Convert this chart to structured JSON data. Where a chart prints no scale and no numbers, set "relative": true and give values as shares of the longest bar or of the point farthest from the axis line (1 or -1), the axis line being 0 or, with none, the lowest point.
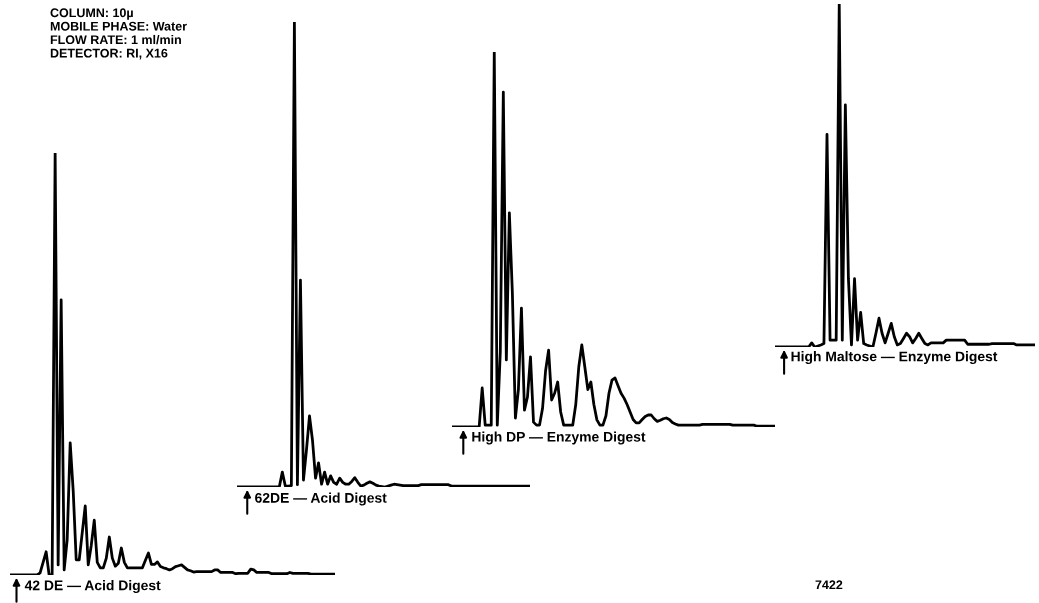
{
  "chart_data": [
    {
      "type": "line",
      "relative": true,
      "tick_labels": false,
      "xlabel": "42 DE — Acid Digest",
      "annotations": [
        "COLUMN: 10µ\nMOBILE PHASE: Water\nFLOW RATE: 1 ml/min\nDETECTOR: RI, X16"
      ],
      "categories": [
        null,
        null,
        null,
        null,
        null,
        null,
        null,
        null,
        null,
        null,
        null,
        null,
        null,
        null,
        null,
        null,
        null,
        null,
        null,
        null,
        null,
        null,
        null,
        null,
        null,
        null,
        null,
        null,
        null,
        null,
        null,
        null,
        null,
        null,
        null,
        null,
        null,
        null,
        null,
        null,
        null,
        null,
        null,
        null,
        null,
        null,
        null,
        null,
        null,
        null,
        null,
        null,
        null,
        null,
        null,
        null,
        null,
        null,
        null,
        null,
        null,
        null,
        null,
        null,
        null,
        null,
        null,
        null,
        null,
        null,
        null,
        null,
        null,
        null,
        null,
        null,
        null,
        null,
        null,
        null,
        null,
        null,
        null,
        null,
        null,
        null,
        null,
        null,
        null,
        null,
        null,
        null,
        null,
        null,
        null,
        null,
        null,
        null,
        null,
        null,
        null,
        null,
        null,
        null,
        null,
        null,
        null,
        null,
        null
      ],
      "series": [
        {
          "color": "#000000",
          "values": [
            0,
            0,
            0,
            0,
            0,
            0,
            0,
            0,
            0,
            0,
            0.005,
            0.03,
            0.055,
            0,
            0,
            1,
            0.024,
            0.652,
            0.012,
            0.083,
            0.313,
            0.2,
            0.036,
            0.036,
            0.1,
            0.164,
            0.024,
            0.07,
            0.13,
            0.03,
            0.017,
            0.017,
            0.04,
            0.09,
            0.04,
            0.021,
            0.028,
            0.064,
            0.03,
            0.017,
            0.017,
            0.017,
            0.017,
            0.017,
            0.017,
            0.035,
            0.052,
            0.025,
            0.025,
            0.031,
            0.02,
            0.017,
            0.015,
            0.012,
            0.015,
            0.02,
            0.022,
            0.024,
            0.018,
            0.012,
            0.01,
            0.007,
            0.008,
            0.008,
            0.008,
            0.008,
            0.008,
            0.008,
            0.012,
            0.012,
            0.006,
            0.006,
            0.006,
            0.006,
            0.006,
            0.003,
            0.004,
            0.004,
            0.004,
            0.004,
            0.014,
            0.012,
            0.006,
            0.006,
            0.006,
            0.006,
            0.006,
            0.003,
            0.003,
            0.003,
            0.003,
            0.003,
            0.003,
            0.006,
            0.004,
            0.004,
            0.004,
            0.004,
            0.004,
            0.004,
            0.002,
            0.002,
            0.002,
            0.002,
            0.002,
            0.002,
            0.002,
            0.002,
            0.002
          ]
        }
      ]
    },
    {
      "type": "line",
      "relative": true,
      "tick_labels": false,
      "xlabel": "62DE — Acid Digest",
      "categories": [
        null,
        null,
        null,
        null,
        null,
        null,
        null,
        null,
        null,
        null,
        null,
        null,
        null,
        null,
        null,
        null,
        null,
        null,
        null,
        null,
        null,
        null,
        null,
        null,
        null,
        null,
        null,
        null,
        null,
        null,
        null,
        null,
        null,
        null,
        null,
        null,
        null,
        null,
        null,
        null,
        null,
        null,
        null,
        null,
        null,
        null,
        null,
        null,
        null,
        null,
        null,
        null,
        null,
        null,
        null,
        null,
        null,
        null,
        null,
        null,
        null,
        null,
        null,
        null,
        null,
        null,
        null,
        null,
        null,
        null,
        null,
        null,
        null,
        null,
        null,
        null,
        null,
        null,
        null,
        null,
        null,
        null,
        null,
        null,
        null,
        null,
        null,
        null,
        null,
        null,
        null,
        null,
        null,
        null,
        null,
        null,
        null,
        null
      ],
      "series": [
        {
          "color": "#000000",
          "values": [
            0,
            0,
            0,
            0,
            0,
            0,
            0,
            0,
            0,
            0,
            0,
            0,
            0,
            0,
            0,
            0.032,
            0.002,
            0.002,
            0.003,
            1,
            0.005,
            0.445,
            0.015,
            0.08,
            0.153,
            0.1,
            0.019,
            0.052,
            0.006,
            0.032,
            0.006,
            0.024,
            0.01,
            0.006,
            0.019,
            0.01,
            0.006,
            0.006,
            0.012,
            0.02,
            0.01,
            0.002,
            0.004,
            0.008,
            0.011,
            0.008,
            0.004,
            0.002,
            0.001,
            0,
            0.002,
            0.004,
            0.006,
            0.005,
            0.004,
            0.003,
            0.003,
            0.003,
            0.003,
            0.003,
            0.003,
            0.005,
            0.005,
            0.005,
            0.005,
            0.005,
            0.005,
            0.005,
            0.005,
            0.005,
            0.005,
            0.002,
            0.002,
            0.002,
            0.002,
            0.002,
            0.002,
            0.002,
            0.002,
            0.002,
            0.002,
            0.002,
            0.002,
            0.002,
            0.002,
            0.002,
            0.002,
            0.002,
            0.002,
            0.002,
            0.002,
            0.002,
            0.002,
            0.002,
            0.002,
            0.002,
            0.002,
            0.002
          ]
        }
      ]
    },
    {
      "type": "line",
      "relative": true,
      "tick_labels": false,
      "xlabel": "High DP — Enzyme Digest",
      "categories": [
        null,
        null,
        null,
        null,
        null,
        null,
        null,
        null,
        null,
        null,
        null,
        null,
        null,
        null,
        null,
        null,
        null,
        null,
        null,
        null,
        null,
        null,
        null,
        null,
        null,
        null,
        null,
        null,
        null,
        null,
        null,
        null,
        null,
        null,
        null,
        null,
        null,
        null,
        null,
        null,
        null,
        null,
        null,
        null,
        null,
        null,
        null,
        null,
        null,
        null,
        null,
        null,
        null,
        null,
        null,
        null,
        null,
        null,
        null,
        null,
        null,
        null,
        null,
        null,
        null,
        null,
        null,
        null,
        null,
        null,
        null,
        null,
        null,
        null,
        null,
        null,
        null,
        null,
        null,
        null,
        null,
        null,
        null,
        null,
        null,
        null,
        null,
        null,
        null,
        null,
        null,
        null,
        null,
        null,
        null,
        null,
        null,
        null,
        null,
        null,
        null,
        null,
        null,
        null,
        null,
        null,
        null,
        null
      ],
      "series": [
        {
          "color": "#000000",
          "values": [
            0,
            0,
            0,
            0,
            0,
            0,
            0,
            0,
            0,
            0,
            0.104,
            0.005,
            0.005,
            0.005,
            1,
            0.005,
            0.2,
            0.893,
            0.179,
            0.571,
            0.357,
            0.024,
            0.1,
            0.317,
            0.045,
            0.08,
            0.187,
            0.013,
            0.005,
            0.005,
            0.05,
            0.15,
            0.205,
            0.072,
            0.09,
            0.12,
            0.04,
            0.005,
            0.005,
            0.005,
            0.005,
            0.06,
            0.16,
            0.219,
            0.16,
            0.1,
            0.12,
            0.06,
            0.019,
            0.005,
            0.005,
            0.03,
            0.09,
            0.125,
            0.131,
            0.11,
            0.09,
            0.077,
            0.06,
            0.04,
            0.02,
            0.011,
            0.011,
            0.02,
            0.028,
            0.032,
            0.032,
            0.022,
            0.015,
            0.018,
            0.022,
            0.024,
            0.02,
            0.012,
            0.008,
            0.005,
            0.005,
            0.005,
            0.005,
            0.005,
            0.005,
            0.005,
            0.005,
            0.007,
            0.007,
            0.007,
            0.007,
            0.007,
            0.007,
            0.007,
            0.007,
            0.007,
            0.007,
            0.005,
            0.005,
            0.005,
            0.005,
            0.005,
            0.005,
            0.005,
            0.005,
            0.002,
            0.002,
            0.002,
            0.002,
            0.002,
            0.002,
            0.002
          ]
        }
      ]
    },
    {
      "type": "line",
      "relative": true,
      "tick_labels": false,
      "xlabel": "High Maltose — Enzyme Digest",
      "annotations": [
        "7422"
      ],
      "categories": [
        null,
        null,
        null,
        null,
        null,
        null,
        null,
        null,
        null,
        null,
        null,
        null,
        null,
        null,
        null,
        null,
        null,
        null,
        null,
        null,
        null,
        null,
        null,
        null,
        null,
        null,
        null,
        null,
        null,
        null,
        null,
        null,
        null,
        null,
        null,
        null,
        null,
        null,
        null,
        null,
        null,
        null,
        null,
        null,
        null,
        null,
        null,
        null,
        null,
        null,
        null,
        null,
        null,
        null,
        null,
        null,
        null,
        null,
        null,
        null,
        null,
        null,
        null,
        null,
        null,
        null,
        null,
        null,
        null,
        null,
        null,
        null,
        null,
        null,
        null,
        null,
        null,
        null,
        null,
        null,
        null,
        null,
        null,
        null,
        null,
        null
      ],
      "series": [
        {
          "color": "#000000",
          "values": [
            0,
            0,
            0,
            0,
            0,
            0,
            0,
            0,
            0,
            0,
            0,
            0,
            0.012,
            0,
            0.003,
            0.006,
            0.01,
            0.62,
            0.02,
            0.02,
            0.02,
            1,
            0.02,
            0.706,
            0.2,
            0.006,
            0.199,
            0.02,
            0.101,
            0.01,
            0.006,
            0.003,
            0,
            0.04,
            0.084,
            0.04,
            0.012,
            0.04,
            0.069,
            0.03,
            0.006,
            0.01,
            0.025,
            0.04,
            0.03,
            0.012,
            0.025,
            0.04,
            0.025,
            0.01,
            0.006,
            0.012,
            0.012,
            0.012,
            0.012,
            0.012,
            0.02,
            0.02,
            0.02,
            0.02,
            0.02,
            0.02,
            0.02,
            0.008,
            0.008,
            0.008,
            0.008,
            0.008,
            0.008,
            0.008,
            0.008,
            0.01,
            0.01,
            0.01,
            0.01,
            0.01,
            0.01,
            0.01,
            0.01,
            0.006,
            0.006,
            0.006,
            0.006,
            0.006,
            0.006,
            0.006
          ]
        }
      ]
    }
  ]
}
